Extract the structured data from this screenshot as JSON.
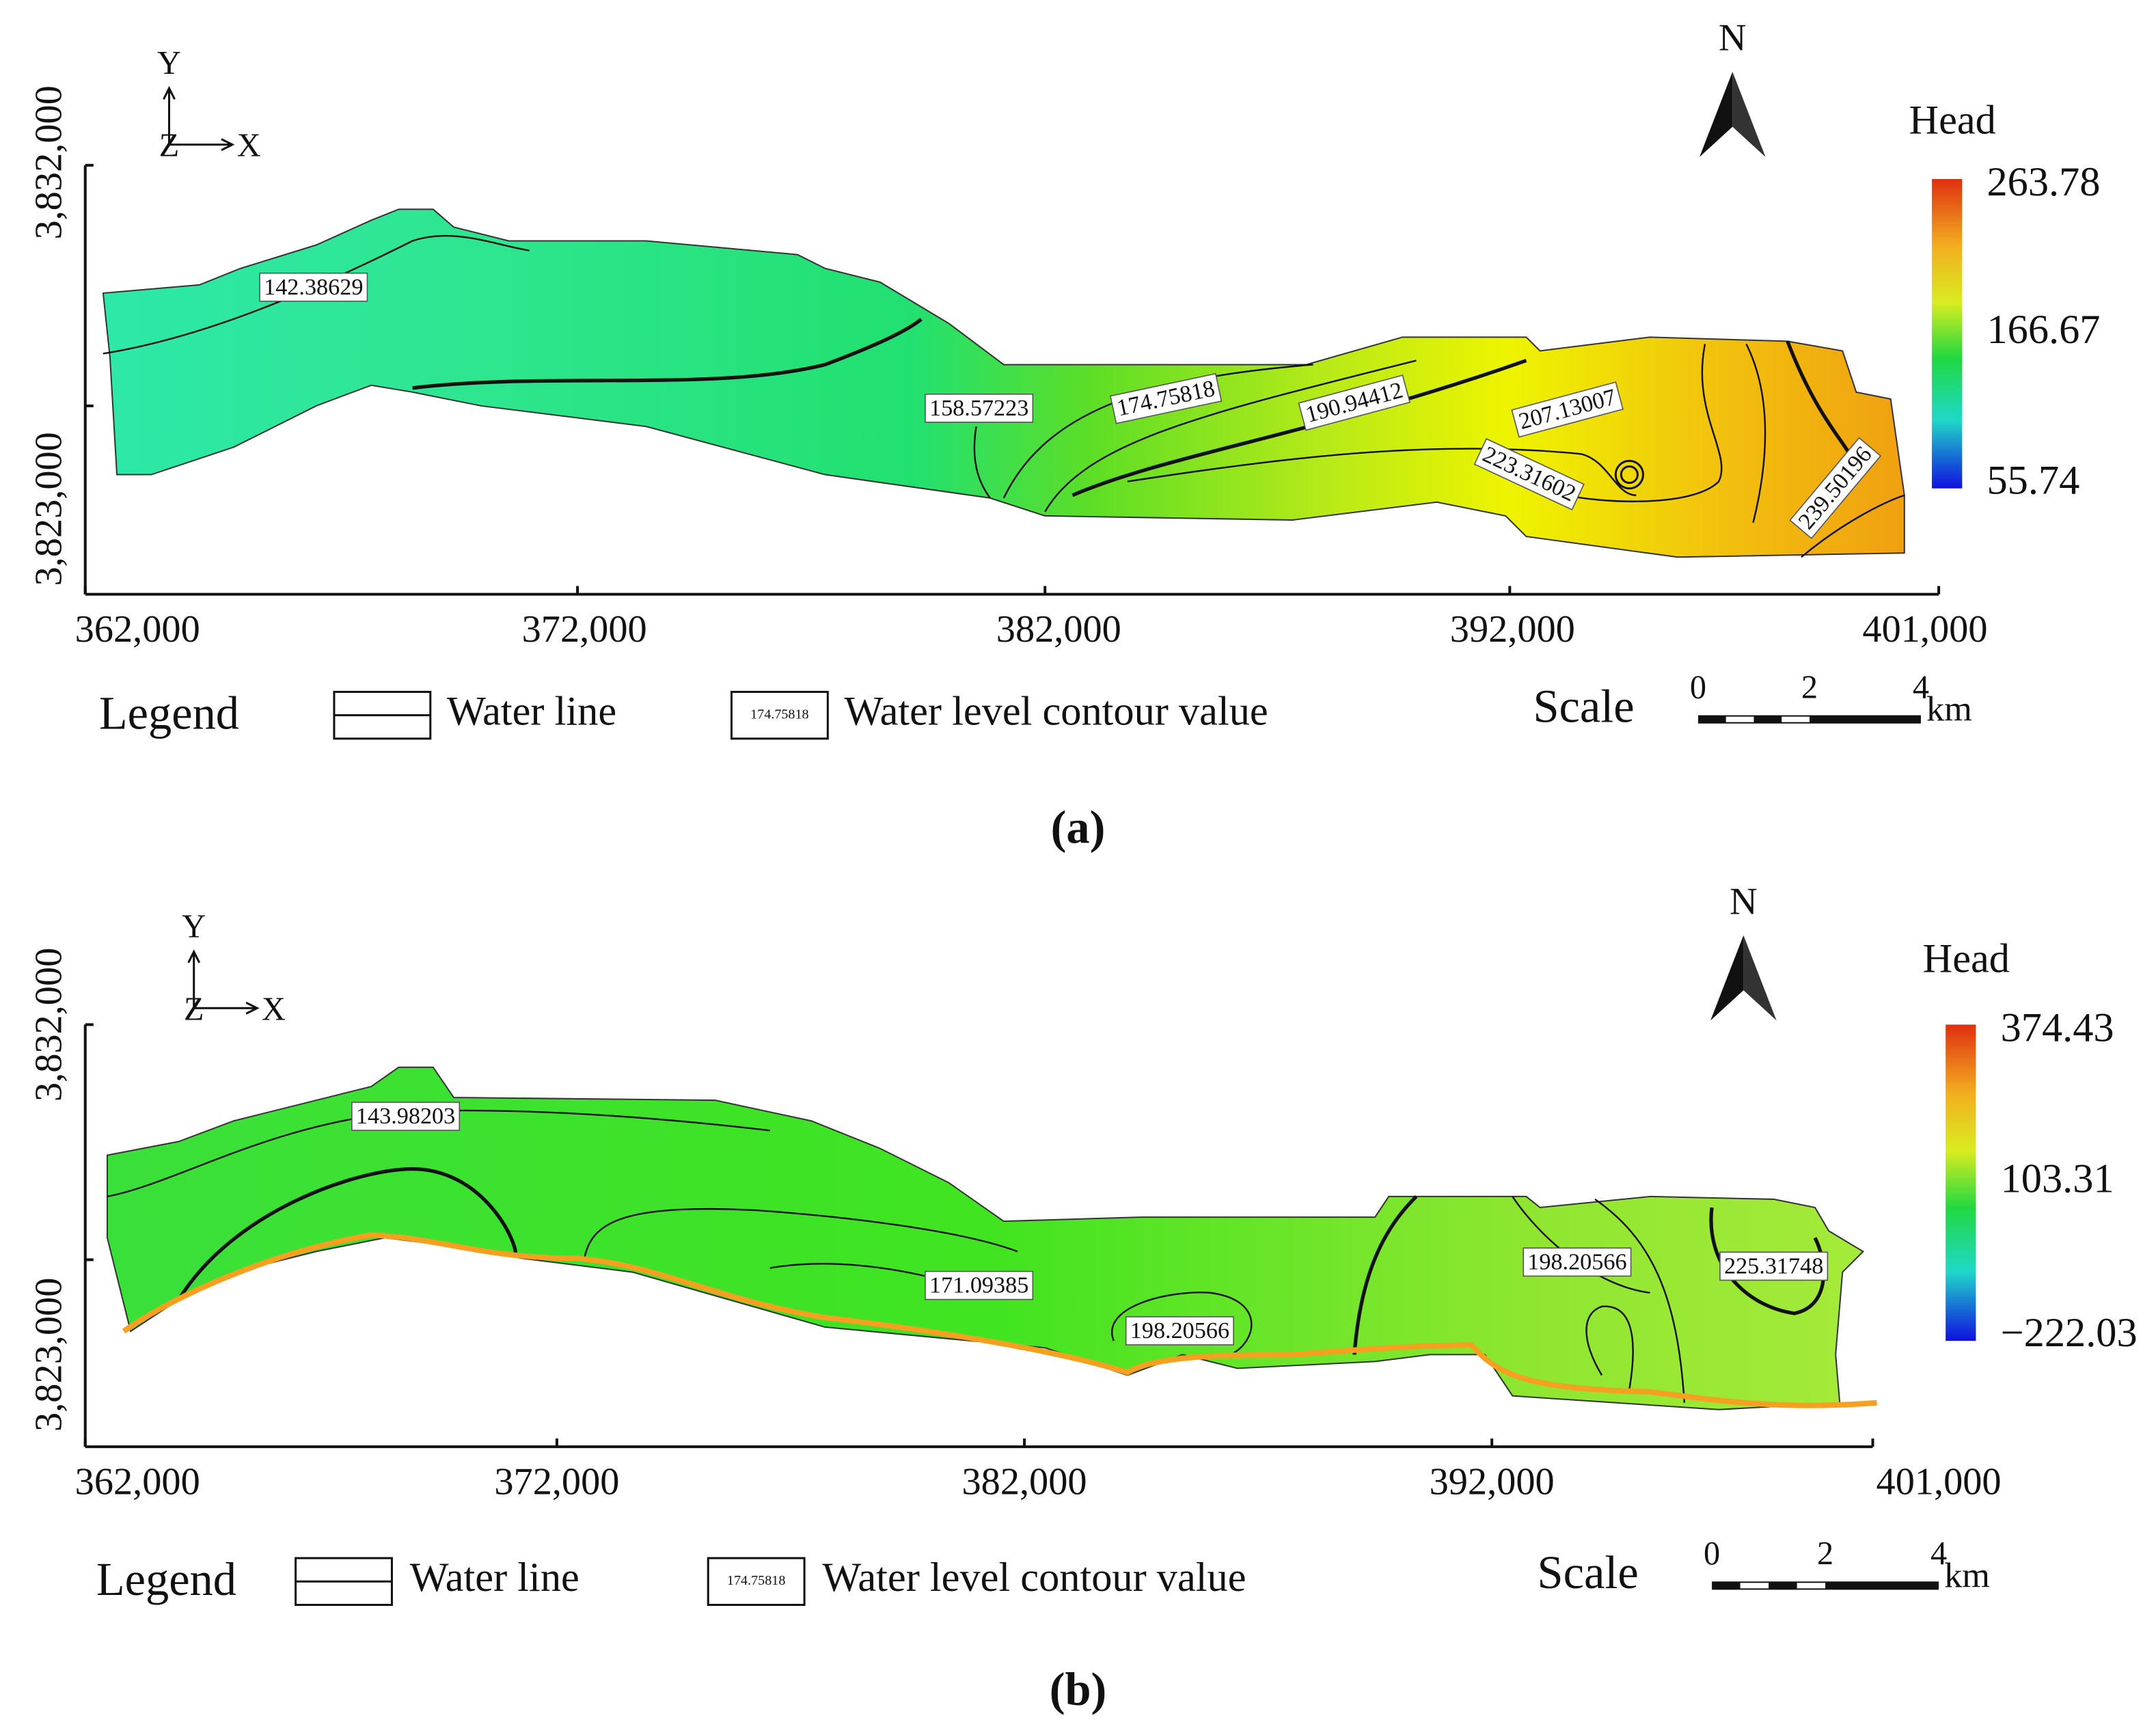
{
  "panels": [
    {
      "caption": "(a)",
      "x_ticks": [
        "362,000",
        "372,000",
        "382,000",
        "392,000",
        "401,000"
      ],
      "y_ticks": [
        "3,832,000",
        "3,823,000"
      ],
      "axis_glyphs": {
        "y": "Y",
        "z": "Z",
        "x": "X"
      },
      "north": "N",
      "colorbar": {
        "title": "Head",
        "max": "263.78",
        "mid": "166.67",
        "min": "55.74"
      },
      "contour_labels": [
        "142.38629",
        "158.57223",
        "174.75818",
        "190.94412",
        "207.13007",
        "223.31602",
        "239.50196"
      ],
      "legend": {
        "title": "Legend",
        "line_item": "Water line",
        "sample": "174.75818",
        "label_item": "Water level contour value"
      },
      "scale": {
        "title": "Scale",
        "ticks": [
          "0",
          "2",
          "4"
        ],
        "unit": "km"
      }
    },
    {
      "caption": "(b)",
      "x_ticks": [
        "362,000",
        "372,000",
        "382,000",
        "392,000",
        "401,000"
      ],
      "y_ticks": [
        "3,832,000",
        "3,823,000"
      ],
      "axis_glyphs": {
        "y": "Y",
        "z": "Z",
        "x": "X"
      },
      "north": "N",
      "colorbar": {
        "title": "Head",
        "max": "374.43",
        "mid": "103.31",
        "min": "−222.03"
      },
      "contour_labels": [
        "143.98203",
        "171.09385",
        "198.20566",
        "198.20566",
        "225.31748"
      ],
      "legend": {
        "title": "Legend",
        "line_item": "Water line",
        "sample": "174.75818",
        "label_item": "Water level contour value"
      },
      "scale": {
        "title": "Scale",
        "ticks": [
          "0",
          "2",
          "4"
        ],
        "unit": "km"
      }
    }
  ]
}
